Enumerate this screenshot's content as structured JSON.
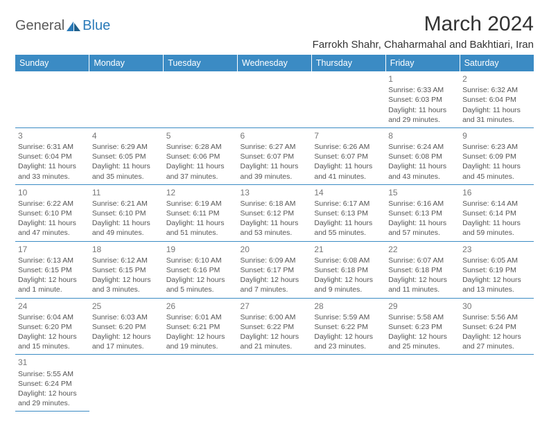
{
  "brand": {
    "word1": "General",
    "word2": "Blue"
  },
  "header": {
    "title": "March 2024",
    "location": "Farrokh Shahr, Chaharmahal and Bakhtiari, Iran"
  },
  "colors": {
    "header_bg": "#3b8bc4",
    "header_fg": "#ffffff",
    "rule": "#3b8bc4",
    "brand_gray": "#5a5a5a",
    "brand_blue": "#2a7ab8"
  },
  "day_labels": [
    "Sunday",
    "Monday",
    "Tuesday",
    "Wednesday",
    "Thursday",
    "Friday",
    "Saturday"
  ],
  "first_weekday_index": 5,
  "days_in_month": 31,
  "cells": {
    "1": {
      "sunrise": "6:33 AM",
      "sunset": "6:03 PM",
      "daylight": "11 hours and 29 minutes."
    },
    "2": {
      "sunrise": "6:32 AM",
      "sunset": "6:04 PM",
      "daylight": "11 hours and 31 minutes."
    },
    "3": {
      "sunrise": "6:31 AM",
      "sunset": "6:04 PM",
      "daylight": "11 hours and 33 minutes."
    },
    "4": {
      "sunrise": "6:29 AM",
      "sunset": "6:05 PM",
      "daylight": "11 hours and 35 minutes."
    },
    "5": {
      "sunrise": "6:28 AM",
      "sunset": "6:06 PM",
      "daylight": "11 hours and 37 minutes."
    },
    "6": {
      "sunrise": "6:27 AM",
      "sunset": "6:07 PM",
      "daylight": "11 hours and 39 minutes."
    },
    "7": {
      "sunrise": "6:26 AM",
      "sunset": "6:07 PM",
      "daylight": "11 hours and 41 minutes."
    },
    "8": {
      "sunrise": "6:24 AM",
      "sunset": "6:08 PM",
      "daylight": "11 hours and 43 minutes."
    },
    "9": {
      "sunrise": "6:23 AM",
      "sunset": "6:09 PM",
      "daylight": "11 hours and 45 minutes."
    },
    "10": {
      "sunrise": "6:22 AM",
      "sunset": "6:10 PM",
      "daylight": "11 hours and 47 minutes."
    },
    "11": {
      "sunrise": "6:21 AM",
      "sunset": "6:10 PM",
      "daylight": "11 hours and 49 minutes."
    },
    "12": {
      "sunrise": "6:19 AM",
      "sunset": "6:11 PM",
      "daylight": "11 hours and 51 minutes."
    },
    "13": {
      "sunrise": "6:18 AM",
      "sunset": "6:12 PM",
      "daylight": "11 hours and 53 minutes."
    },
    "14": {
      "sunrise": "6:17 AM",
      "sunset": "6:13 PM",
      "daylight": "11 hours and 55 minutes."
    },
    "15": {
      "sunrise": "6:16 AM",
      "sunset": "6:13 PM",
      "daylight": "11 hours and 57 minutes."
    },
    "16": {
      "sunrise": "6:14 AM",
      "sunset": "6:14 PM",
      "daylight": "11 hours and 59 minutes."
    },
    "17": {
      "sunrise": "6:13 AM",
      "sunset": "6:15 PM",
      "daylight": "12 hours and 1 minute."
    },
    "18": {
      "sunrise": "6:12 AM",
      "sunset": "6:15 PM",
      "daylight": "12 hours and 3 minutes."
    },
    "19": {
      "sunrise": "6:10 AM",
      "sunset": "6:16 PM",
      "daylight": "12 hours and 5 minutes."
    },
    "20": {
      "sunrise": "6:09 AM",
      "sunset": "6:17 PM",
      "daylight": "12 hours and 7 minutes."
    },
    "21": {
      "sunrise": "6:08 AM",
      "sunset": "6:18 PM",
      "daylight": "12 hours and 9 minutes."
    },
    "22": {
      "sunrise": "6:07 AM",
      "sunset": "6:18 PM",
      "daylight": "12 hours and 11 minutes."
    },
    "23": {
      "sunrise": "6:05 AM",
      "sunset": "6:19 PM",
      "daylight": "12 hours and 13 minutes."
    },
    "24": {
      "sunrise": "6:04 AM",
      "sunset": "6:20 PM",
      "daylight": "12 hours and 15 minutes."
    },
    "25": {
      "sunrise": "6:03 AM",
      "sunset": "6:20 PM",
      "daylight": "12 hours and 17 minutes."
    },
    "26": {
      "sunrise": "6:01 AM",
      "sunset": "6:21 PM",
      "daylight": "12 hours and 19 minutes."
    },
    "27": {
      "sunrise": "6:00 AM",
      "sunset": "6:22 PM",
      "daylight": "12 hours and 21 minutes."
    },
    "28": {
      "sunrise": "5:59 AM",
      "sunset": "6:22 PM",
      "daylight": "12 hours and 23 minutes."
    },
    "29": {
      "sunrise": "5:58 AM",
      "sunset": "6:23 PM",
      "daylight": "12 hours and 25 minutes."
    },
    "30": {
      "sunrise": "5:56 AM",
      "sunset": "6:24 PM",
      "daylight": "12 hours and 27 minutes."
    },
    "31": {
      "sunrise": "5:55 AM",
      "sunset": "6:24 PM",
      "daylight": "12 hours and 29 minutes."
    }
  },
  "labels": {
    "sunrise": "Sunrise: ",
    "sunset": "Sunset: ",
    "daylight": "Daylight: "
  }
}
